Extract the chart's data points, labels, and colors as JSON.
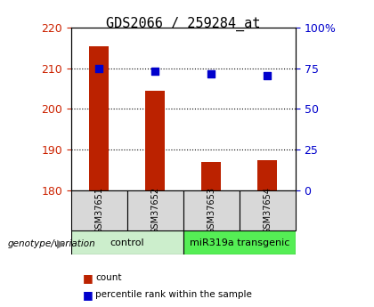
{
  "title": "GDS2066 / 259284_at",
  "categories": [
    "GSM37651",
    "GSM37652",
    "GSM37653",
    "GSM37654"
  ],
  "bar_values": [
    215.5,
    204.5,
    187.0,
    187.5
  ],
  "bar_baseline": 180,
  "percentile_values": [
    75.0,
    73.0,
    71.5,
    70.5
  ],
  "ylim_left": [
    180,
    220
  ],
  "ylim_right": [
    0,
    100
  ],
  "yticks_left": [
    180,
    190,
    200,
    210,
    220
  ],
  "yticks_right": [
    0,
    25,
    50,
    75,
    100
  ],
  "ytick_labels_right": [
    "0",
    "25",
    "50",
    "75",
    "100%"
  ],
  "bar_color": "#bb2200",
  "dot_color": "#0000cc",
  "group1_label": "control",
  "group2_label": "miR319a transgenic",
  "group1_color": "#cceecc",
  "group2_color": "#55ee55",
  "group_label_prefix": "genotype/variation",
  "legend_count_label": "count",
  "legend_pct_label": "percentile rank within the sample",
  "left_tick_color": "#cc2200",
  "right_tick_color": "#0000cc",
  "title_fontsize": 11,
  "tick_fontsize": 9,
  "label_fontsize": 8
}
